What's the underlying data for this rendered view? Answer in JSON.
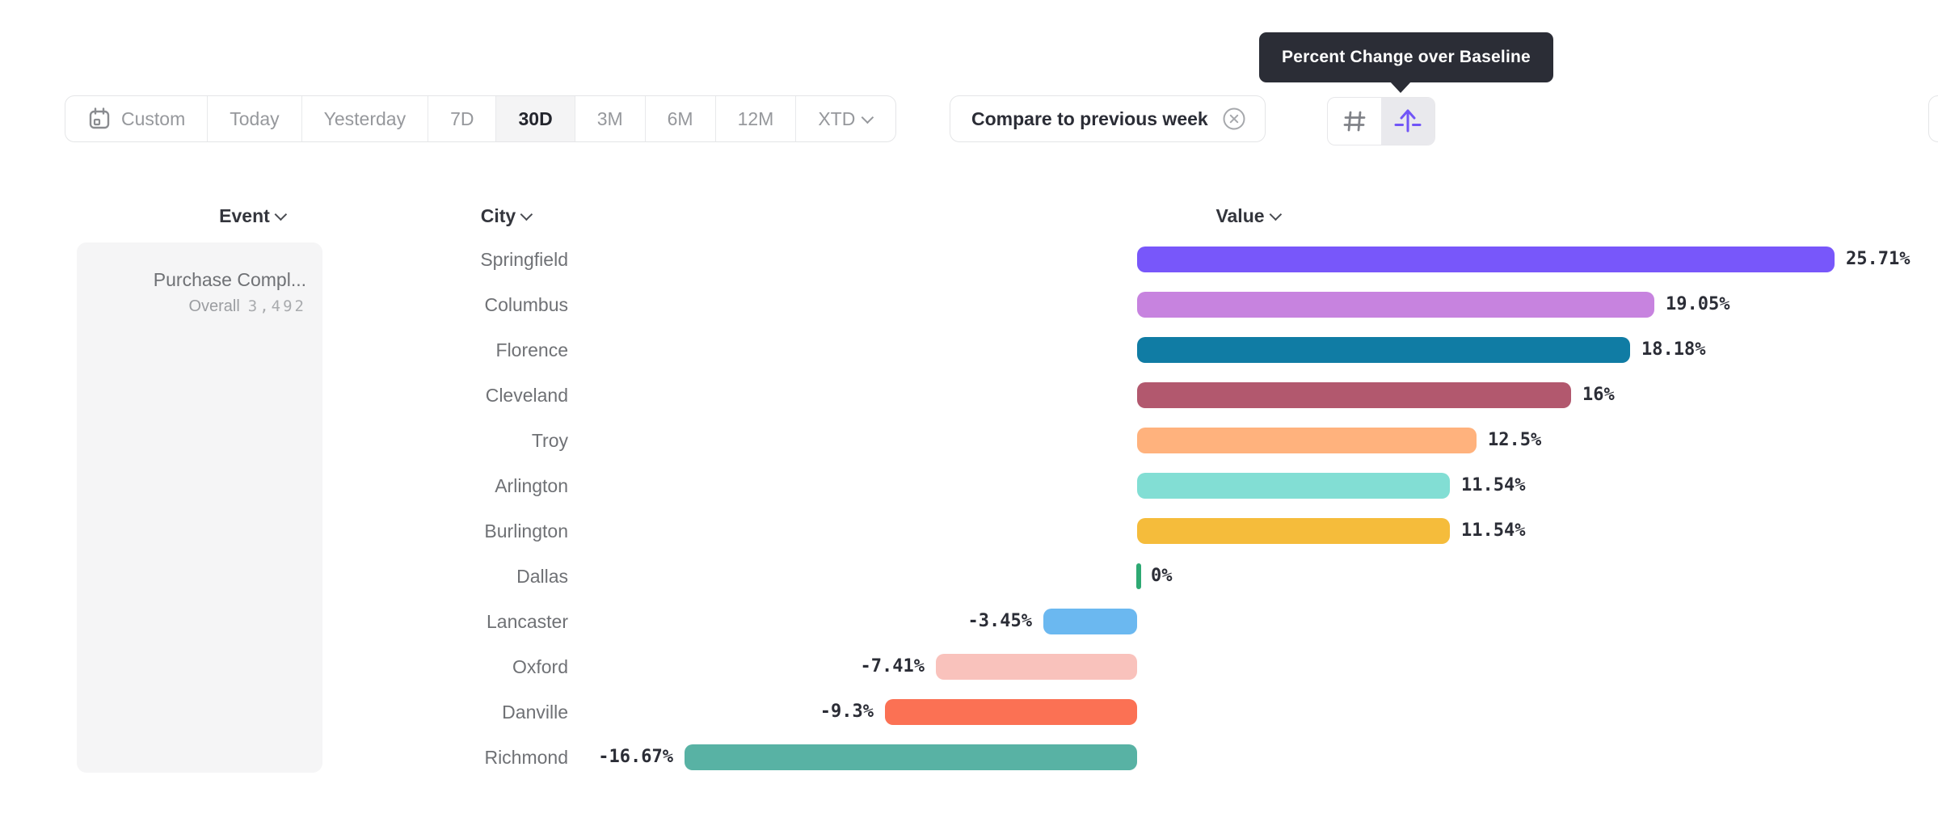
{
  "tooltip": {
    "text": "Percent Change over Baseline"
  },
  "toolbar": {
    "date_ranges": [
      {
        "label": "Custom",
        "icon": "calendar-icon",
        "selected": false
      },
      {
        "label": "Today",
        "selected": false
      },
      {
        "label": "Yesterday",
        "selected": false
      },
      {
        "label": "7D",
        "selected": false
      },
      {
        "label": "30D",
        "selected": true
      },
      {
        "label": "3M",
        "selected": false
      },
      {
        "label": "6M",
        "selected": false
      },
      {
        "label": "12M",
        "selected": false
      },
      {
        "label": "XTD",
        "selected": false,
        "has_dropdown": true
      }
    ],
    "compare_label": "Compare to previous week",
    "view_toggle": {
      "options": [
        "hash-icon",
        "baseline-arrow-icon"
      ],
      "selected": "baseline-arrow-icon"
    },
    "accent_color": "#7155f7"
  },
  "columns": {
    "event": "Event",
    "city": "City",
    "value": "Value"
  },
  "event_panel": {
    "name": "Purchase Compl...",
    "overall_label": "Overall",
    "overall_value": "3,492"
  },
  "chart_data": {
    "type": "bar",
    "orientation": "horizontal",
    "title": "Percent Change over Baseline",
    "unit": "percent",
    "baseline": 0,
    "xlim": [
      -16.67,
      25.71
    ],
    "categories": [
      "Springfield",
      "Columbus",
      "Florence",
      "Cleveland",
      "Troy",
      "Arlington",
      "Burlington",
      "Dallas",
      "Lancaster",
      "Oxford",
      "Danville",
      "Richmond"
    ],
    "values": [
      25.71,
      19.05,
      18.18,
      16,
      12.5,
      11.54,
      11.54,
      0,
      -3.45,
      -7.41,
      -9.3,
      -16.67
    ],
    "labels": [
      "25.71%",
      "19.05%",
      "18.18%",
      "16%",
      "12.5%",
      "11.54%",
      "11.54%",
      "0%",
      "-3.45%",
      "-7.41%",
      "-9.3%",
      "-16.67%"
    ],
    "colors": [
      "#7857FA",
      "#C783DF",
      "#107CA4",
      "#B2586E",
      "#FFB27D",
      "#82DED4",
      "#F5BC3B",
      "#2EA973",
      "#6BB8F0",
      "#F9C2BC",
      "#FB7154",
      "#58B2A4"
    ],
    "zero_tick_color": "#2EA973",
    "grid": false,
    "legend": false
  }
}
